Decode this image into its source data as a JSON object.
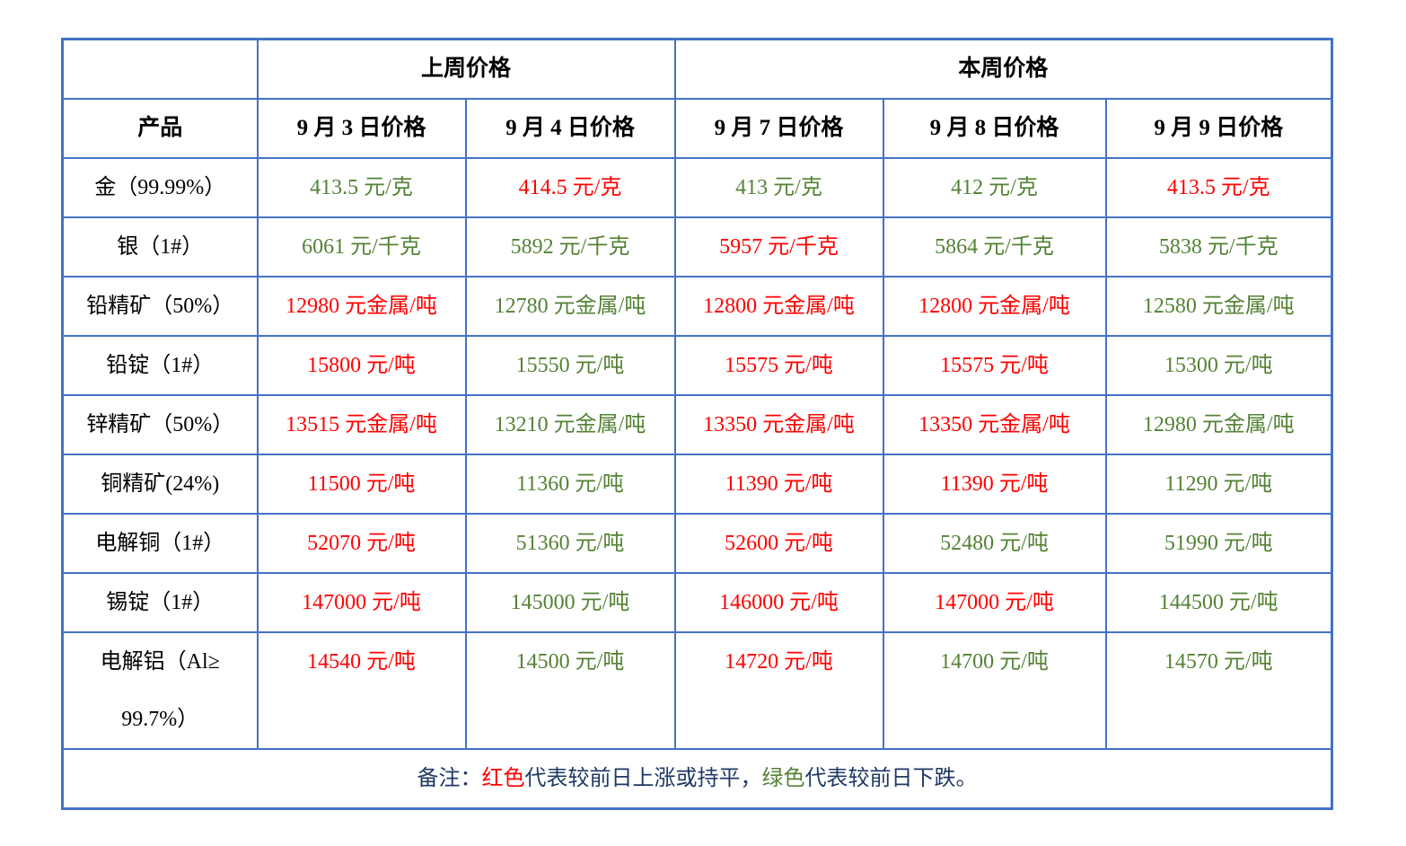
{
  "table": {
    "corner_label": "",
    "header_groups": [
      {
        "label": "上周价格",
        "colspan": 2
      },
      {
        "label": "本周价格",
        "colspan": 3
      }
    ],
    "columns": [
      "产品",
      "9 月 3 日价格",
      "9 月 4 日价格",
      "9 月 7 日价格",
      "9 月 8 日价格",
      "9 月 9 日价格"
    ],
    "rows": [
      {
        "product": "金（99.99%）",
        "values": [
          {
            "text": "413.5 元/克",
            "color": "green"
          },
          {
            "text": "414.5 元/克",
            "color": "red"
          },
          {
            "text": "413 元/克",
            "color": "green"
          },
          {
            "text": "412 元/克",
            "color": "green"
          },
          {
            "text": "413.5 元/克",
            "color": "red"
          }
        ]
      },
      {
        "product": "银（1#）",
        "values": [
          {
            "text": "6061 元/千克",
            "color": "green"
          },
          {
            "text": "5892 元/千克",
            "color": "green"
          },
          {
            "text": "5957 元/千克",
            "color": "red"
          },
          {
            "text": "5864 元/千克",
            "color": "green"
          },
          {
            "text": "5838 元/千克",
            "color": "green"
          }
        ]
      },
      {
        "product": "铅精矿（50%）",
        "values": [
          {
            "text": "12980 元金属/吨",
            "color": "red"
          },
          {
            "text": "12780 元金属/吨",
            "color": "green"
          },
          {
            "text": "12800 元金属/吨",
            "color": "red"
          },
          {
            "text": "12800 元金属/吨",
            "color": "red"
          },
          {
            "text": "12580 元金属/吨",
            "color": "green"
          }
        ]
      },
      {
        "product": "铅锭（1#）",
        "values": [
          {
            "text": "15800 元/吨",
            "color": "red"
          },
          {
            "text": "15550 元/吨",
            "color": "green"
          },
          {
            "text": "15575 元/吨",
            "color": "red"
          },
          {
            "text": "15575 元/吨",
            "color": "red"
          },
          {
            "text": "15300 元/吨",
            "color": "green"
          }
        ]
      },
      {
        "product": "锌精矿（50%）",
        "values": [
          {
            "text": "13515 元金属/吨",
            "color": "red"
          },
          {
            "text": "13210 元金属/吨",
            "color": "green"
          },
          {
            "text": "13350 元金属/吨",
            "color": "red"
          },
          {
            "text": "13350 元金属/吨",
            "color": "red"
          },
          {
            "text": "12980 元金属/吨",
            "color": "green"
          }
        ]
      },
      {
        "product": "铜精矿(24%)",
        "values": [
          {
            "text": "11500 元/吨",
            "color": "red"
          },
          {
            "text": "11360 元/吨",
            "color": "green"
          },
          {
            "text": "11390 元/吨",
            "color": "red"
          },
          {
            "text": "11390 元/吨",
            "color": "red"
          },
          {
            "text": "11290 元/吨",
            "color": "green"
          }
        ]
      },
      {
        "product": "电解铜（1#）",
        "values": [
          {
            "text": "52070 元/吨",
            "color": "red"
          },
          {
            "text": "51360 元/吨",
            "color": "green"
          },
          {
            "text": "52600 元/吨",
            "color": "red"
          },
          {
            "text": "52480 元/吨",
            "color": "green"
          },
          {
            "text": "51990 元/吨",
            "color": "green"
          }
        ]
      },
      {
        "product": "锡锭（1#）",
        "values": [
          {
            "text": "147000 元/吨",
            "color": "red"
          },
          {
            "text": "145000 元/吨",
            "color": "green"
          },
          {
            "text": "146000 元/吨",
            "color": "red"
          },
          {
            "text": "147000 元/吨",
            "color": "red"
          },
          {
            "text": "144500 元/吨",
            "color": "green"
          }
        ]
      },
      {
        "product": "电解铝（Al≥\n99.7%）",
        "tall": true,
        "values": [
          {
            "text": "14540 元/吨",
            "color": "red"
          },
          {
            "text": "14500 元/吨",
            "color": "green"
          },
          {
            "text": "14720 元/吨",
            "color": "red"
          },
          {
            "text": "14700 元/吨",
            "color": "green"
          },
          {
            "text": "14570 元/吨",
            "color": "green"
          }
        ]
      }
    ],
    "note": {
      "parts": [
        {
          "text": "备注：",
          "color": "navy"
        },
        {
          "text": "红色",
          "color": "red"
        },
        {
          "text": "代表较前日上涨或持平，",
          "color": "navy"
        },
        {
          "text": "绿色",
          "color": "green"
        },
        {
          "text": "代表较前日下跌。",
          "color": "navy"
        }
      ]
    },
    "colors": {
      "red": "#FF0000",
      "green": "#548235",
      "navy": "#1F3864",
      "border": "#4472C4"
    }
  }
}
